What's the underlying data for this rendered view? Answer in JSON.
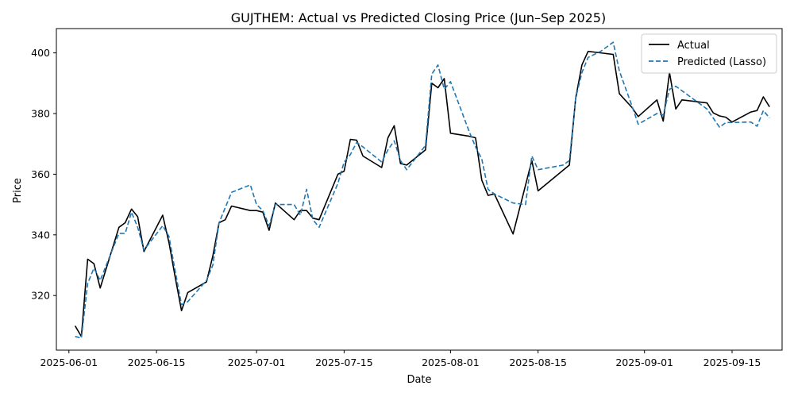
{
  "chart_data": {
    "type": "line",
    "title": "GUJTHEM: Actual vs Predicted Closing Price (Jun–Sep 2025)",
    "xlabel": "Date",
    "ylabel": "Price",
    "xlim": [
      "2025-05-30",
      "2025-09-23"
    ],
    "ylim": [
      302,
      408
    ],
    "x_ticks": [
      "2025-06-01",
      "2025-06-15",
      "2025-07-01",
      "2025-07-15",
      "2025-08-01",
      "2025-08-15",
      "2025-09-01",
      "2025-09-15"
    ],
    "y_ticks": [
      320,
      340,
      360,
      380,
      400
    ],
    "grid": false,
    "legend_position": "top-right",
    "series": [
      {
        "name": "Actual",
        "color": "#000000",
        "dash": "solid",
        "points": [
          [
            "2025-06-02",
            310
          ],
          [
            "2025-06-03",
            306.5
          ],
          [
            "2025-06-04",
            332
          ],
          [
            "2025-06-05",
            330.5
          ],
          [
            "2025-06-06",
            322.5
          ],
          [
            "2025-06-09",
            342.5
          ],
          [
            "2025-06-10",
            344
          ],
          [
            "2025-06-11",
            348.5
          ],
          [
            "2025-06-12",
            346
          ],
          [
            "2025-06-13",
            334.5
          ],
          [
            "2025-06-16",
            346.5
          ],
          [
            "2025-06-17",
            337.5
          ],
          [
            "2025-06-18",
            326
          ],
          [
            "2025-06-19",
            315
          ],
          [
            "2025-06-20",
            321
          ],
          [
            "2025-06-23",
            324.5
          ],
          [
            "2025-06-24",
            333
          ],
          [
            "2025-06-25",
            344
          ],
          [
            "2025-06-26",
            345
          ],
          [
            "2025-06-27",
            349.5
          ],
          [
            "2025-06-30",
            348
          ],
          [
            "2025-07-01",
            348
          ],
          [
            "2025-07-02",
            347.5
          ],
          [
            "2025-07-03",
            341.5
          ],
          [
            "2025-07-04",
            350.5
          ],
          [
            "2025-07-07",
            345
          ],
          [
            "2025-07-08",
            348
          ],
          [
            "2025-07-09",
            348
          ],
          [
            "2025-07-10",
            345.5
          ],
          [
            "2025-07-11",
            345
          ],
          [
            "2025-07-14",
            360
          ],
          [
            "2025-07-15",
            361
          ],
          [
            "2025-07-16",
            371.5
          ],
          [
            "2025-07-17",
            371.2
          ],
          [
            "2025-07-18",
            366
          ],
          [
            "2025-07-21",
            362.2
          ],
          [
            "2025-07-22",
            372
          ],
          [
            "2025-07-23",
            376
          ],
          [
            "2025-07-24",
            363.5
          ],
          [
            "2025-07-25",
            363
          ],
          [
            "2025-07-28",
            368
          ],
          [
            "2025-07-29",
            390
          ],
          [
            "2025-07-30",
            388.5
          ],
          [
            "2025-07-31",
            391.5
          ],
          [
            "2025-08-01",
            373.5
          ],
          [
            "2025-08-04",
            372.5
          ],
          [
            "2025-08-05",
            372
          ],
          [
            "2025-08-06",
            358
          ],
          [
            "2025-08-07",
            353
          ],
          [
            "2025-08-08",
            353.5
          ],
          [
            "2025-08-11",
            340.3
          ],
          [
            "2025-08-14",
            364.5
          ],
          [
            "2025-08-15",
            354.5
          ],
          [
            "2025-08-20",
            363
          ],
          [
            "2025-08-21",
            385
          ],
          [
            "2025-08-22",
            396
          ],
          [
            "2025-08-23",
            400.5
          ],
          [
            "2025-08-27",
            399.5
          ],
          [
            "2025-08-28",
            386.5
          ],
          [
            "2025-08-30",
            382
          ],
          [
            "2025-08-31",
            379
          ],
          [
            "2025-09-03",
            384.5
          ],
          [
            "2025-09-04",
            377.5
          ],
          [
            "2025-09-05",
            393.5
          ],
          [
            "2025-09-06",
            381.5
          ],
          [
            "2025-09-07",
            384.5
          ],
          [
            "2025-09-09",
            384
          ],
          [
            "2025-09-11",
            383.5
          ],
          [
            "2025-09-12",
            380.2
          ],
          [
            "2025-09-13",
            379.2
          ],
          [
            "2025-09-14",
            378.8
          ],
          [
            "2025-09-15",
            377.2
          ],
          [
            "2025-09-18",
            380.5
          ],
          [
            "2025-09-19",
            381
          ],
          [
            "2025-09-20",
            385.5
          ],
          [
            "2025-09-21",
            382.2
          ]
        ]
      },
      {
        "name": "Predicted (Lasso)",
        "color": "#1f77b4",
        "dash": "dashed",
        "points": [
          [
            "2025-06-02",
            306.5
          ],
          [
            "2025-06-03",
            306
          ],
          [
            "2025-06-04",
            324
          ],
          [
            "2025-06-05",
            329
          ],
          [
            "2025-06-06",
            325
          ],
          [
            "2025-06-09",
            340.5
          ],
          [
            "2025-06-10",
            340.5
          ],
          [
            "2025-06-11",
            347.5
          ],
          [
            "2025-06-12",
            342.5
          ],
          [
            "2025-06-13",
            335
          ],
          [
            "2025-06-16",
            343
          ],
          [
            "2025-06-17",
            339.5
          ],
          [
            "2025-06-18",
            328
          ],
          [
            "2025-06-19",
            317
          ],
          [
            "2025-06-20",
            318
          ],
          [
            "2025-06-23",
            325
          ],
          [
            "2025-06-24",
            330
          ],
          [
            "2025-06-25",
            344
          ],
          [
            "2025-06-27",
            354
          ],
          [
            "2025-06-30",
            356.5
          ],
          [
            "2025-07-01",
            350
          ],
          [
            "2025-07-02",
            348
          ],
          [
            "2025-07-03",
            343
          ],
          [
            "2025-07-04",
            350
          ],
          [
            "2025-07-07",
            350
          ],
          [
            "2025-07-08",
            346.5
          ],
          [
            "2025-07-09",
            355
          ],
          [
            "2025-07-10",
            345
          ],
          [
            "2025-07-11",
            342.5
          ],
          [
            "2025-07-14",
            357
          ],
          [
            "2025-07-15",
            364
          ],
          [
            "2025-07-16",
            366.5
          ],
          [
            "2025-07-17",
            370.5
          ],
          [
            "2025-07-18",
            369
          ],
          [
            "2025-07-21",
            364
          ],
          [
            "2025-07-22",
            368
          ],
          [
            "2025-07-23",
            371
          ],
          [
            "2025-07-24",
            364.5
          ],
          [
            "2025-07-25",
            361.5
          ],
          [
            "2025-07-28",
            369.5
          ],
          [
            "2025-07-29",
            393
          ],
          [
            "2025-07-30",
            396
          ],
          [
            "2025-07-31",
            388
          ],
          [
            "2025-08-01",
            390.5
          ],
          [
            "2025-08-04",
            374
          ],
          [
            "2025-08-05",
            369
          ],
          [
            "2025-08-06",
            365
          ],
          [
            "2025-08-07",
            355
          ],
          [
            "2025-08-08",
            353.5
          ],
          [
            "2025-08-11",
            350.5
          ],
          [
            "2025-08-13",
            350
          ],
          [
            "2025-08-14",
            366
          ],
          [
            "2025-08-15",
            361.5
          ],
          [
            "2025-08-19",
            363
          ],
          [
            "2025-08-20",
            364.5
          ],
          [
            "2025-08-21",
            385
          ],
          [
            "2025-08-22",
            393.5
          ],
          [
            "2025-08-23",
            398.5
          ],
          [
            "2025-08-25",
            400.5
          ],
          [
            "2025-08-27",
            403.5
          ],
          [
            "2025-08-28",
            394
          ],
          [
            "2025-08-30",
            382.5
          ],
          [
            "2025-08-31",
            376.5
          ],
          [
            "2025-09-03",
            380
          ],
          [
            "2025-09-04",
            379.5
          ],
          [
            "2025-09-05",
            388
          ],
          [
            "2025-09-06",
            389
          ],
          [
            "2025-09-09",
            384.5
          ],
          [
            "2025-09-11",
            381.5
          ],
          [
            "2025-09-13",
            375.5
          ],
          [
            "2025-09-14",
            377
          ],
          [
            "2025-09-18",
            377.2
          ],
          [
            "2025-09-19",
            375.8
          ],
          [
            "2025-09-20",
            381
          ],
          [
            "2025-09-21",
            378.5
          ]
        ]
      }
    ]
  }
}
